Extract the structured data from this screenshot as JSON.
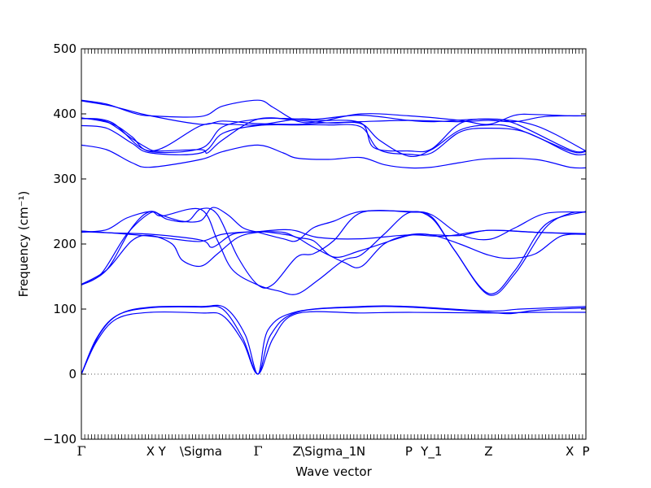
{
  "chart_data": {
    "type": "line",
    "xlabel": "Wave vector",
    "ylabel": "Frequency (cm⁻¹)",
    "ylim": [
      -100,
      500
    ],
    "yticks": [
      -100,
      0,
      100,
      200,
      300,
      400,
      500
    ],
    "xlim": [
      0,
      10
    ],
    "high_symmetry_points": [
      {
        "label": "Γ",
        "x": 0.0
      },
      {
        "label": "X",
        "x": 1.37
      },
      {
        "label": "Y",
        "x": 1.6
      },
      {
        "label": "\\Sigma",
        "x": 2.37
      },
      {
        "label": "Γ",
        "x": 3.5
      },
      {
        "label": "Z",
        "x": 4.27
      },
      {
        "label": "\\Sigma_1",
        "x": 4.9
      },
      {
        "label": "N",
        "x": 5.54
      },
      {
        "label": "P",
        "x": 6.49
      },
      {
        "label": "Y_1",
        "x": 6.94
      },
      {
        "label": "Z",
        "x": 8.07
      },
      {
        "label": "X",
        "x": 9.68
      },
      {
        "label": "P",
        "x": 10.0
      }
    ],
    "zero_line": true,
    "series_color": "#0000ff",
    "series": [
      {
        "points": [
          [
            0,
            0
          ],
          [
            0.3,
            55
          ],
          [
            0.7,
            90
          ],
          [
            1.37,
            102
          ],
          [
            2.37,
            103
          ],
          [
            2.8,
            100
          ],
          [
            3.2,
            55
          ],
          [
            3.5,
            0
          ],
          [
            3.75,
            60
          ],
          [
            4.27,
            95
          ],
          [
            5.54,
            103
          ],
          [
            6.49,
            103
          ],
          [
            8.07,
            95
          ],
          [
            8.5,
            93
          ],
          [
            9.0,
            98
          ],
          [
            10.0,
            102
          ]
        ]
      },
      {
        "points": [
          [
            0,
            0
          ],
          [
            0.3,
            50
          ],
          [
            0.7,
            85
          ],
          [
            1.37,
            95
          ],
          [
            2.37,
            94
          ],
          [
            2.8,
            90
          ],
          [
            3.2,
            50
          ],
          [
            3.5,
            0
          ],
          [
            3.8,
            55
          ],
          [
            4.27,
            93
          ],
          [
            5.54,
            94
          ],
          [
            6.49,
            95
          ],
          [
            8.07,
            94
          ],
          [
            9.0,
            95
          ],
          [
            10.0,
            95
          ]
        ]
      },
      {
        "points": [
          [
            0,
            0
          ],
          [
            0.35,
            60
          ],
          [
            0.75,
            92
          ],
          [
            1.37,
            103
          ],
          [
            2.37,
            104
          ],
          [
            2.85,
            102
          ],
          [
            3.25,
            60
          ],
          [
            3.5,
            0
          ],
          [
            3.7,
            68
          ],
          [
            4.27,
            96
          ],
          [
            5.54,
            104
          ],
          [
            6.49,
            104
          ],
          [
            8.07,
            97
          ],
          [
            8.7,
            100
          ],
          [
            10.0,
            104
          ]
        ]
      },
      {
        "points": [
          [
            0,
            137
          ],
          [
            0.4,
            155
          ],
          [
            0.9,
            215
          ],
          [
            1.37,
            248
          ],
          [
            1.6,
            243
          ],
          [
            2.37,
            253
          ],
          [
            2.7,
            205
          ],
          [
            3.0,
            160
          ],
          [
            3.5,
            137
          ],
          [
            3.9,
            128
          ],
          [
            4.27,
            123
          ],
          [
            4.7,
            145
          ],
          [
            5.2,
            175
          ],
          [
            5.54,
            183
          ],
          [
            6.0,
            215
          ],
          [
            6.49,
            248
          ],
          [
            6.94,
            240
          ],
          [
            7.4,
            190
          ],
          [
            8.07,
            122
          ],
          [
            8.6,
            155
          ],
          [
            9.2,
            225
          ],
          [
            9.68,
            247
          ],
          [
            10.0,
            249
          ]
        ]
      },
      {
        "points": [
          [
            0,
            137
          ],
          [
            0.5,
            160
          ],
          [
            1.0,
            225
          ],
          [
            1.37,
            250
          ],
          [
            1.7,
            238
          ],
          [
            2.1,
            235
          ],
          [
            2.37,
            254
          ],
          [
            2.7,
            245
          ],
          [
            3.1,
            180
          ],
          [
            3.5,
            137
          ],
          [
            3.8,
            138
          ],
          [
            4.27,
            180
          ],
          [
            4.6,
            185
          ],
          [
            5.0,
            205
          ],
          [
            5.54,
            248
          ],
          [
            6.49,
            249
          ],
          [
            6.94,
            242
          ],
          [
            7.4,
            190
          ],
          [
            8.07,
            124
          ],
          [
            8.6,
            160
          ],
          [
            9.2,
            230
          ],
          [
            10.0,
            250
          ]
        ]
      },
      {
        "points": [
          [
            0,
            218
          ],
          [
            0.5,
            222
          ],
          [
            0.9,
            240
          ],
          [
            1.37,
            250
          ],
          [
            1.6,
            244
          ],
          [
            2.0,
            235
          ],
          [
            2.37,
            236
          ],
          [
            2.6,
            256
          ],
          [
            2.9,
            245
          ],
          [
            3.2,
            225
          ],
          [
            3.5,
            218
          ],
          [
            4.0,
            208
          ],
          [
            4.27,
            205
          ],
          [
            4.6,
            225
          ],
          [
            5.0,
            235
          ],
          [
            5.54,
            250
          ],
          [
            6.49,
            250
          ],
          [
            6.94,
            245
          ],
          [
            7.5,
            215
          ],
          [
            8.07,
            207
          ],
          [
            8.6,
            225
          ],
          [
            9.2,
            247
          ],
          [
            10.0,
            249
          ]
        ]
      },
      {
        "points": [
          [
            0,
            220
          ],
          [
            0.6,
            217
          ],
          [
            1.37,
            212
          ],
          [
            1.8,
            208
          ],
          [
            2.37,
            204
          ],
          [
            2.8,
            215
          ],
          [
            3.5,
            219
          ],
          [
            4.0,
            215
          ],
          [
            4.27,
            210
          ],
          [
            4.6,
            195
          ],
          [
            5.2,
            172
          ],
          [
            5.54,
            165
          ],
          [
            6.0,
            200
          ],
          [
            6.49,
            214
          ],
          [
            6.94,
            214
          ],
          [
            7.5,
            200
          ],
          [
            8.07,
            183
          ],
          [
            8.5,
            178
          ],
          [
            9.0,
            185
          ],
          [
            9.5,
            212
          ],
          [
            10.0,
            215
          ]
        ]
      },
      {
        "points": [
          [
            0,
            219
          ],
          [
            0.6,
            217
          ],
          [
            1.37,
            215
          ],
          [
            2.37,
            206
          ],
          [
            2.6,
            195
          ],
          [
            3.0,
            215
          ],
          [
            3.5,
            219
          ],
          [
            4.0,
            222
          ],
          [
            4.27,
            220
          ],
          [
            4.7,
            210
          ],
          [
            5.54,
            208
          ],
          [
            6.49,
            214
          ],
          [
            7.2,
            212
          ],
          [
            8.07,
            221
          ],
          [
            9.0,
            218
          ],
          [
            10.0,
            215
          ]
        ]
      },
      {
        "points": [
          [
            0,
            138
          ],
          [
            0.5,
            160
          ],
          [
            1.0,
            205
          ],
          [
            1.37,
            213
          ],
          [
            1.8,
            200
          ],
          [
            2.0,
            175
          ],
          [
            2.37,
            166
          ],
          [
            2.7,
            185
          ],
          [
            3.1,
            210
          ],
          [
            3.5,
            218
          ],
          [
            4.0,
            218
          ],
          [
            4.27,
            210
          ],
          [
            4.6,
            205
          ],
          [
            5.0,
            180
          ],
          [
            5.54,
            190
          ],
          [
            6.49,
            213
          ],
          [
            7.0,
            214
          ],
          [
            7.5,
            213
          ],
          [
            8.07,
            221
          ],
          [
            9.0,
            218
          ],
          [
            10.0,
            216
          ]
        ]
      },
      {
        "points": [
          [
            0,
            352
          ],
          [
            0.5,
            345
          ],
          [
            1.0,
            325
          ],
          [
            1.37,
            318
          ],
          [
            2.37,
            330
          ],
          [
            2.8,
            342
          ],
          [
            3.5,
            352
          ],
          [
            4.0,
            340
          ],
          [
            4.27,
            332
          ],
          [
            4.9,
            330
          ],
          [
            5.54,
            333
          ],
          [
            6.0,
            322
          ],
          [
            6.49,
            317
          ],
          [
            6.94,
            318
          ],
          [
            7.5,
            325
          ],
          [
            8.07,
            331
          ],
          [
            9.0,
            330
          ],
          [
            9.68,
            318
          ],
          [
            10.0,
            317
          ]
        ]
      },
      {
        "points": [
          [
            0,
            382
          ],
          [
            0.5,
            378
          ],
          [
            1.0,
            355
          ],
          [
            1.37,
            340
          ],
          [
            2.37,
            340
          ],
          [
            2.8,
            370
          ],
          [
            3.5,
            382
          ],
          [
            4.27,
            383
          ],
          [
            4.9,
            383
          ],
          [
            5.54,
            380
          ],
          [
            5.9,
            345
          ],
          [
            6.49,
            338
          ],
          [
            6.94,
            340
          ],
          [
            7.5,
            372
          ],
          [
            8.07,
            378
          ],
          [
            8.8,
            372
          ],
          [
            9.68,
            340
          ],
          [
            10.0,
            338
          ]
        ]
      },
      {
        "points": [
          [
            0,
            393
          ],
          [
            0.5,
            388
          ],
          [
            1.0,
            362
          ],
          [
            1.37,
            345
          ],
          [
            1.6,
            343
          ],
          [
            2.37,
            345
          ],
          [
            2.5,
            340
          ],
          [
            2.8,
            360
          ],
          [
            3.5,
            392
          ],
          [
            4.27,
            390
          ],
          [
            4.9,
            386
          ],
          [
            5.54,
            385
          ],
          [
            5.9,
            360
          ],
          [
            6.49,
            335
          ],
          [
            6.94,
            345
          ],
          [
            7.5,
            375
          ],
          [
            8.07,
            383
          ],
          [
            8.6,
            378
          ],
          [
            9.68,
            343
          ],
          [
            10.0,
            342
          ]
        ]
      },
      {
        "points": [
          [
            0,
            394
          ],
          [
            0.6,
            385
          ],
          [
            1.0,
            365
          ],
          [
            1.37,
            342
          ],
          [
            2.37,
            347
          ],
          [
            2.8,
            380
          ],
          [
            3.5,
            392
          ],
          [
            4.0,
            393
          ],
          [
            4.27,
            392
          ],
          [
            4.7,
            390
          ],
          [
            5.54,
            386
          ],
          [
            5.8,
            348
          ],
          [
            6.49,
            343
          ],
          [
            6.94,
            346
          ],
          [
            7.5,
            385
          ],
          [
            8.07,
            392
          ],
          [
            8.6,
            385
          ],
          [
            9.68,
            345
          ],
          [
            10.0,
            343
          ]
        ]
      },
      {
        "points": [
          [
            0,
            421
          ],
          [
            0.5,
            415
          ],
          [
            1.0,
            402
          ],
          [
            1.37,
            397
          ],
          [
            2.37,
            396
          ],
          [
            2.8,
            412
          ],
          [
            3.5,
            421
          ],
          [
            3.8,
            410
          ],
          [
            4.27,
            389
          ],
          [
            4.7,
            388
          ],
          [
            5.54,
            400
          ],
          [
            6.49,
            397
          ],
          [
            7.5,
            390
          ],
          [
            8.07,
            384
          ],
          [
            8.6,
            398
          ],
          [
            9.0,
            399
          ],
          [
            9.68,
            397
          ],
          [
            10.0,
            397
          ]
        ]
      },
      {
        "points": [
          [
            0,
            420
          ],
          [
            0.6,
            412
          ],
          [
            1.37,
            397
          ],
          [
            2.37,
            384
          ],
          [
            2.8,
            389
          ],
          [
            3.5,
            385
          ],
          [
            4.27,
            384
          ],
          [
            4.8,
            386
          ],
          [
            5.54,
            388
          ],
          [
            6.49,
            390
          ],
          [
            7.5,
            388
          ],
          [
            8.07,
            390
          ],
          [
            8.6,
            388
          ],
          [
            9.2,
            396
          ],
          [
            10.0,
            397
          ]
        ]
      },
      {
        "points": [
          [
            0,
            393
          ],
          [
            0.6,
            387
          ],
          [
            1.37,
            343
          ],
          [
            2.37,
            382
          ],
          [
            2.9,
            384
          ],
          [
            3.5,
            383
          ],
          [
            4.27,
            392
          ],
          [
            4.7,
            392
          ],
          [
            5.54,
            398
          ],
          [
            6.49,
            390
          ],
          [
            7.0,
            388
          ],
          [
            8.07,
            392
          ],
          [
            9.0,
            382
          ],
          [
            10.0,
            343
          ]
        ]
      }
    ]
  }
}
